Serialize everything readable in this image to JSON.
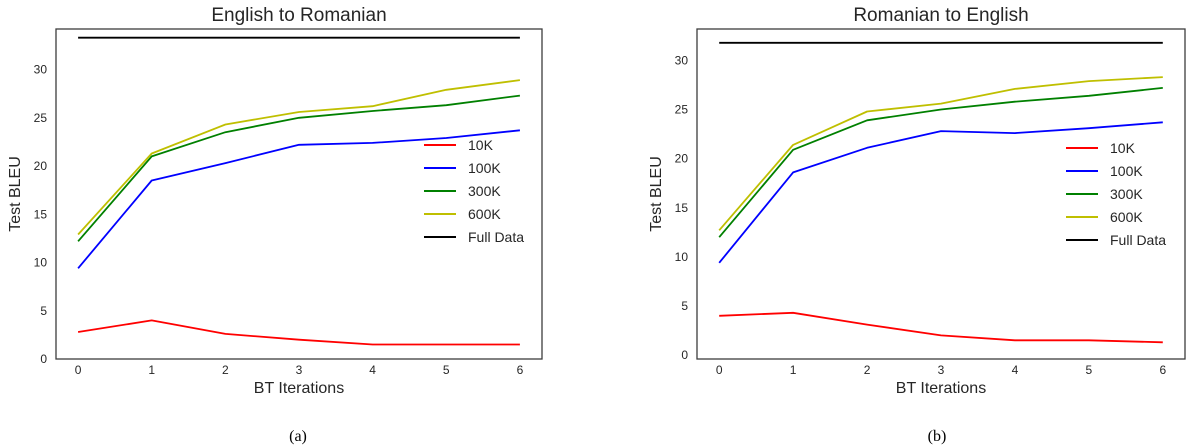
{
  "chart_data": [
    {
      "type": "line",
      "title": "English to Romanian",
      "xlabel": "BT Iterations",
      "ylabel": "Test BLEU",
      "x": [
        0,
        1,
        2,
        3,
        4,
        5,
        6
      ],
      "xlim": [
        -0.3,
        6.3
      ],
      "ylim": [
        0,
        34.2
      ],
      "yticks": [
        0,
        5,
        10,
        15,
        20,
        25,
        30
      ],
      "grid": false,
      "legend": "center-right",
      "caption": "(a)",
      "series": [
        {
          "name": "10K",
          "color": "#ff0000",
          "values": [
            2.8,
            4.0,
            2.6,
            2.0,
            1.5,
            1.5,
            1.5
          ]
        },
        {
          "name": "100K",
          "color": "#0000ff",
          "values": [
            9.4,
            18.5,
            20.3,
            22.2,
            22.4,
            22.9,
            23.7
          ]
        },
        {
          "name": "300K",
          "color": "#008000",
          "values": [
            12.2,
            21.0,
            23.5,
            25.0,
            25.7,
            26.3,
            27.3
          ]
        },
        {
          "name": "600K",
          "color": "#bfbf00",
          "values": [
            12.9,
            21.3,
            24.3,
            25.6,
            26.2,
            27.9,
            28.9
          ]
        },
        {
          "name": "Full Data",
          "color": "#000000",
          "values": [
            33.3,
            33.3,
            33.3,
            33.3,
            33.3,
            33.3,
            33.3
          ]
        }
      ]
    },
    {
      "type": "line",
      "title": "Romanian to English",
      "xlabel": "BT Iterations",
      "ylabel": "Test BLEU",
      "x": [
        0,
        1,
        2,
        3,
        4,
        5,
        6
      ],
      "xlim": [
        -0.3,
        6.3
      ],
      "ylim": [
        -0.4,
        33.2
      ],
      "yticks": [
        0,
        5,
        10,
        15,
        20,
        25,
        30
      ],
      "grid": false,
      "legend": "center-right",
      "caption": "(b)",
      "series": [
        {
          "name": "10K",
          "color": "#ff0000",
          "values": [
            4.0,
            4.3,
            3.1,
            2.0,
            1.5,
            1.5,
            1.3
          ]
        },
        {
          "name": "100K",
          "color": "#0000ff",
          "values": [
            9.4,
            18.6,
            21.1,
            22.8,
            22.6,
            23.1,
            23.7
          ]
        },
        {
          "name": "300K",
          "color": "#008000",
          "values": [
            12.0,
            20.9,
            23.9,
            25.0,
            25.8,
            26.4,
            27.2
          ]
        },
        {
          "name": "600K",
          "color": "#bfbf00",
          "values": [
            12.7,
            21.4,
            24.8,
            25.6,
            27.1,
            27.9,
            28.3
          ]
        },
        {
          "name": "Full Data",
          "color": "#000000",
          "values": [
            31.8,
            31.8,
            31.8,
            31.8,
            31.8,
            31.8,
            31.8
          ]
        }
      ]
    }
  ]
}
